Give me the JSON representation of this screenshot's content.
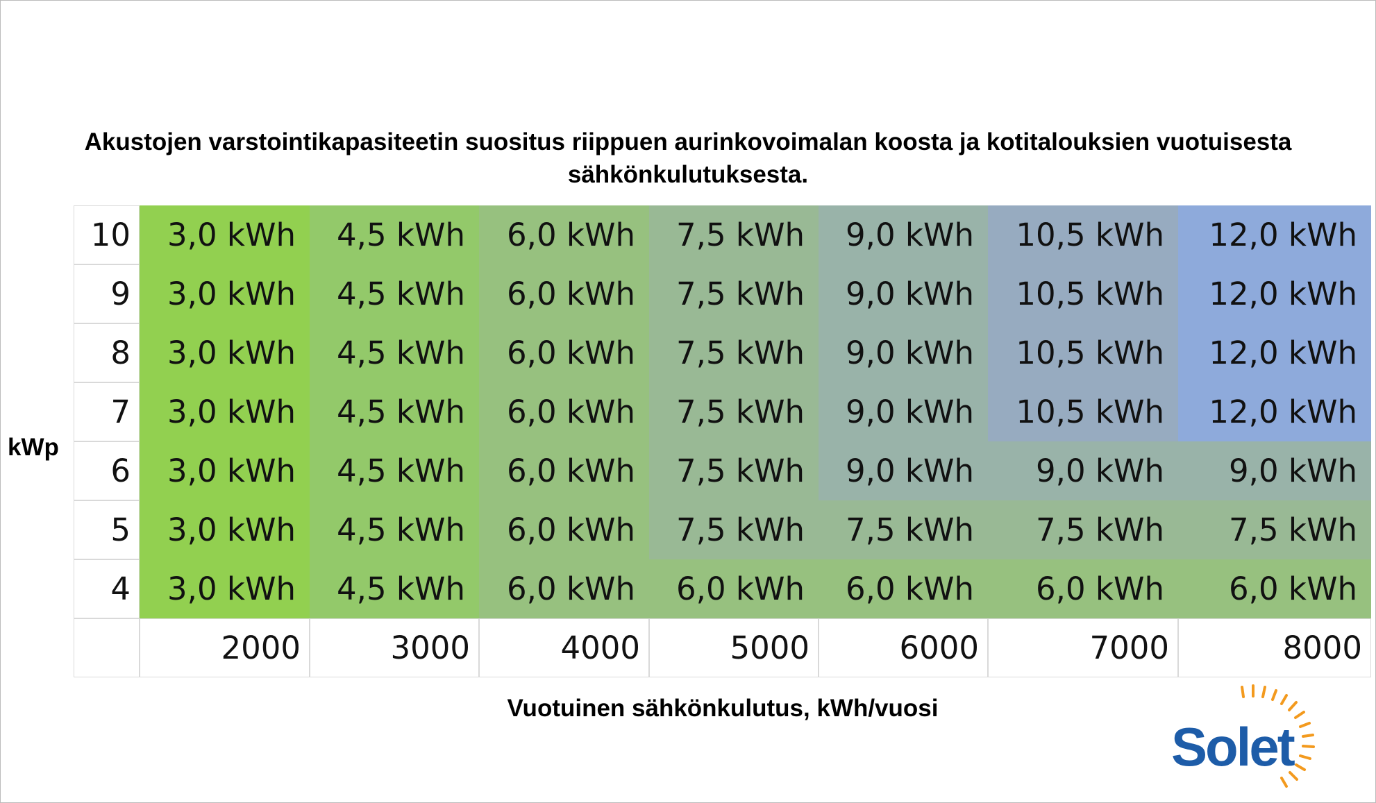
{
  "title": "Akustojen varstointikapasiteetin suositus riippuen aurinkovoimalan koosta ja kotitalouksien vuotuisesta sähkönkulutuksesta.",
  "y_axis_label": "kWp",
  "x_axis_label": "Vuotuinen sähkönkulutus, kWh/vuosi",
  "logo": "Solet",
  "cell_colors": [
    "#92d050",
    "#93c96a",
    "#97c17f",
    "#99b995",
    "#99b3a9",
    "#97abc0",
    "#8eaadb"
  ],
  "table": {
    "row_labels": [
      "10",
      "9",
      "8",
      "7",
      "6",
      "5",
      "4"
    ],
    "rows": [
      [
        "3,0 kWh",
        "4,5 kWh",
        "6,0 kWh",
        "7,5 kWh",
        "9,0 kWh",
        "10,5 kWh",
        "12,0 kWh"
      ],
      [
        "3,0 kWh",
        "4,5 kWh",
        "6,0 kWh",
        "7,5 kWh",
        "9,0 kWh",
        "10,5 kWh",
        "12,0 kWh"
      ],
      [
        "3,0 kWh",
        "4,5 kWh",
        "6,0 kWh",
        "7,5 kWh",
        "9,0 kWh",
        "10,5 kWh",
        "12,0 kWh"
      ],
      [
        "3,0 kWh",
        "4,5 kWh",
        "6,0 kWh",
        "7,5 kWh",
        "9,0 kWh",
        "10,5 kWh",
        "12,0 kWh"
      ],
      [
        "3,0 kWh",
        "4,5 kWh",
        "6,0 kWh",
        "7,5 kWh",
        "9,0 kWh",
        "9,0 kWh",
        "9,0 kWh"
      ],
      [
        "3,0 kWh",
        "4,5 kWh",
        "6,0 kWh",
        "7,5 kWh",
        "7,5 kWh",
        "7,5 kWh",
        "7,5 kWh"
      ],
      [
        "3,0 kWh",
        "4,5 kWh",
        "6,0 kWh",
        "6,0 kWh",
        "6,0 kWh",
        "6,0 kWh",
        "6,0 kWh"
      ]
    ],
    "column_labels": [
      "2000",
      "3000",
      "4000",
      "5000",
      "6000",
      "7000",
      "8000"
    ]
  }
}
